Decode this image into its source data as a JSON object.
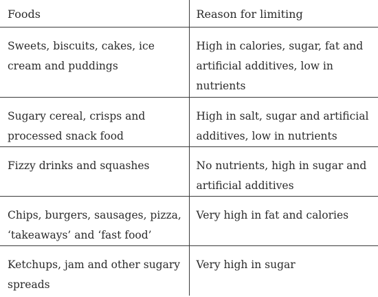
{
  "table": {
    "headers": [
      "Foods",
      "Reason for limiting"
    ],
    "rows": [
      {
        "food": "Sweets, biscuits, cakes, ice cream and puddings",
        "reason": "High in calories, sugar, fat and artificial additives, low in nutrients"
      },
      {
        "food": "Sugary cereal, crisps and processed snack food",
        "reason": "High in salt, sugar and artificial additives, low in nutrients"
      },
      {
        "food": "Fizzy drinks and squashes",
        "reason": "No nutrients, high in sugar and artificial additives"
      },
      {
        "food": "Chips, burgers, sausages, pizza, ‘takeaways’ and ‘fast food’",
        "reason": "Very high in fat and calories"
      },
      {
        "food": "Ketchups, jam and other sugary spreads",
        "reason": "Very high in sugar"
      }
    ]
  }
}
